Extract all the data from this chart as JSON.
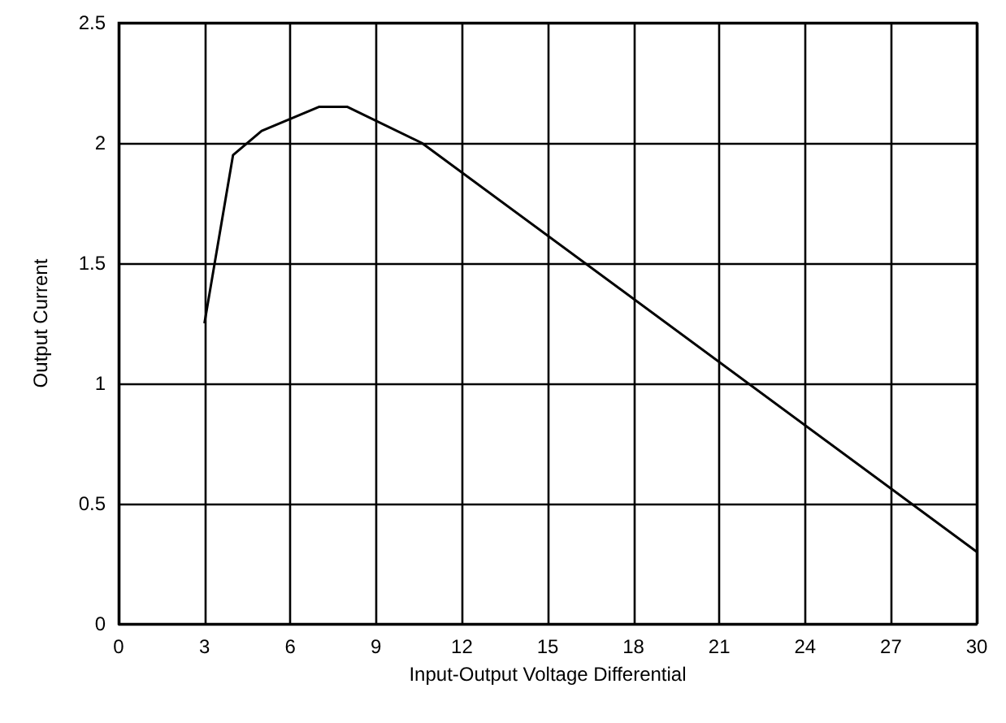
{
  "chart_data": {
    "type": "line",
    "xlabel": "Input-Output Voltage Differential",
    "ylabel": "Output Current",
    "x": [
      3,
      4,
      5,
      7,
      8,
      10.6,
      30
    ],
    "series": [
      {
        "color": "#000000",
        "values": [
          1.25,
          1.95,
          2.05,
          2.15,
          2.15,
          2.0,
          0.3
        ]
      }
    ],
    "xlim": [
      0,
      30
    ],
    "xticks": [
      0,
      3,
      6,
      9,
      12,
      15,
      18,
      21,
      24,
      27,
      30
    ],
    "ylim": [
      0,
      2.5
    ],
    "yticks": [
      0,
      0.5,
      1,
      1.5,
      2,
      2.5
    ],
    "grid": true,
    "marker": "none",
    "line_style": "solid"
  }
}
